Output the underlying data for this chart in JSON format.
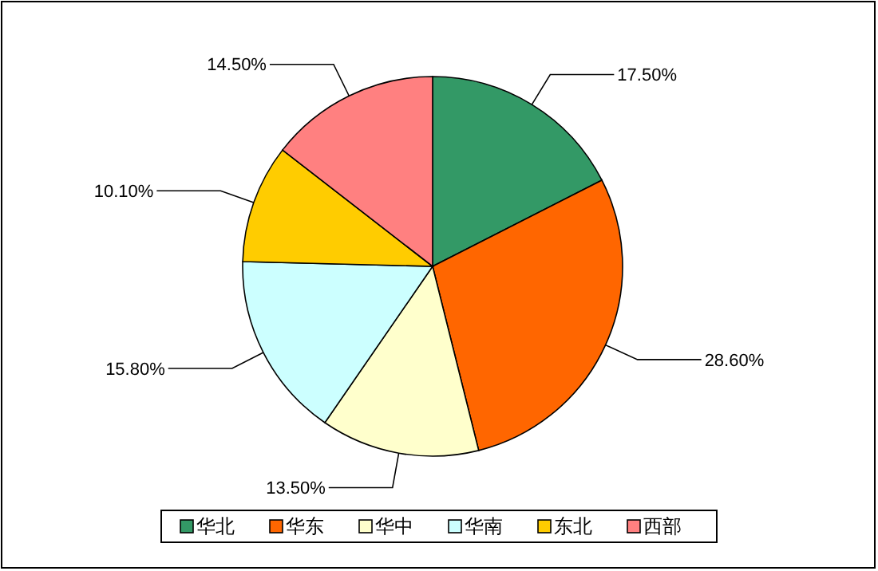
{
  "chart_data": {
    "type": "pie",
    "categories": [
      "华北",
      "华东",
      "华中",
      "华南",
      "东北",
      "西部"
    ],
    "values": [
      17.5,
      28.6,
      13.5,
      15.8,
      10.1,
      14.5
    ],
    "colors": [
      "#339966",
      "#ff6600",
      "#ffffcc",
      "#ccffff",
      "#ffcc00",
      "#ff8080"
    ],
    "value_labels": [
      "17.50%",
      "28.60%",
      "13.50%",
      "15.80%",
      "10.10%",
      "14.50%"
    ],
    "legend": "bottom"
  }
}
